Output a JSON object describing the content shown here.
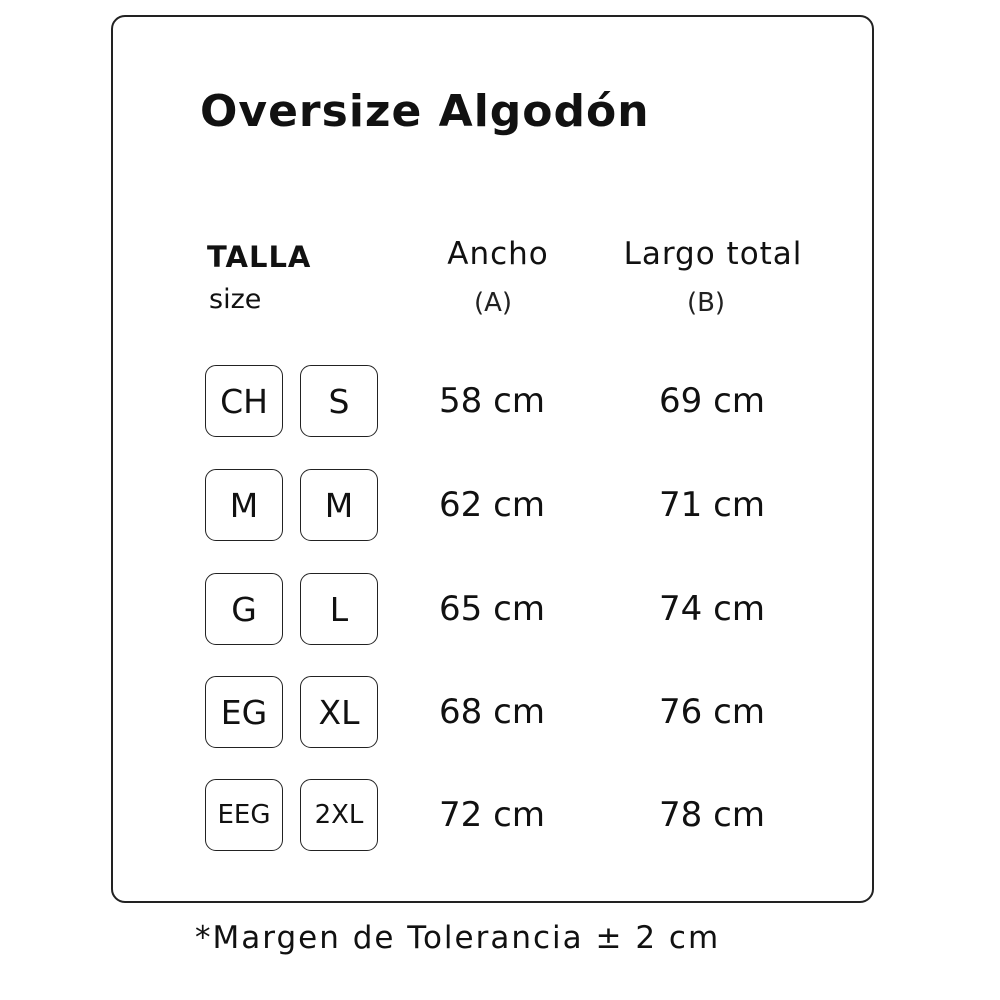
{
  "title": "Oversize Algodón",
  "headers": {
    "size_main": "TALLA",
    "size_sub": "size",
    "width_main": "Ancho",
    "width_sub": "(A)",
    "length_main": "Largo total",
    "length_sub": "(B)"
  },
  "rows": [
    {
      "mx": "CH",
      "intl": "S",
      "width": "58 cm",
      "length": "69 cm"
    },
    {
      "mx": "M",
      "intl": "M",
      "width": "62 cm",
      "length": "71 cm"
    },
    {
      "mx": "G",
      "intl": "L",
      "width": "65 cm",
      "length": "74 cm"
    },
    {
      "mx": "EG",
      "intl": "XL",
      "width": "68 cm",
      "length": "76 cm"
    },
    {
      "mx": "EEG",
      "intl": "2XL",
      "width": "72 cm",
      "length": "78 cm"
    }
  ],
  "footer": "*Margen de Tolerancia ± 2 cm"
}
